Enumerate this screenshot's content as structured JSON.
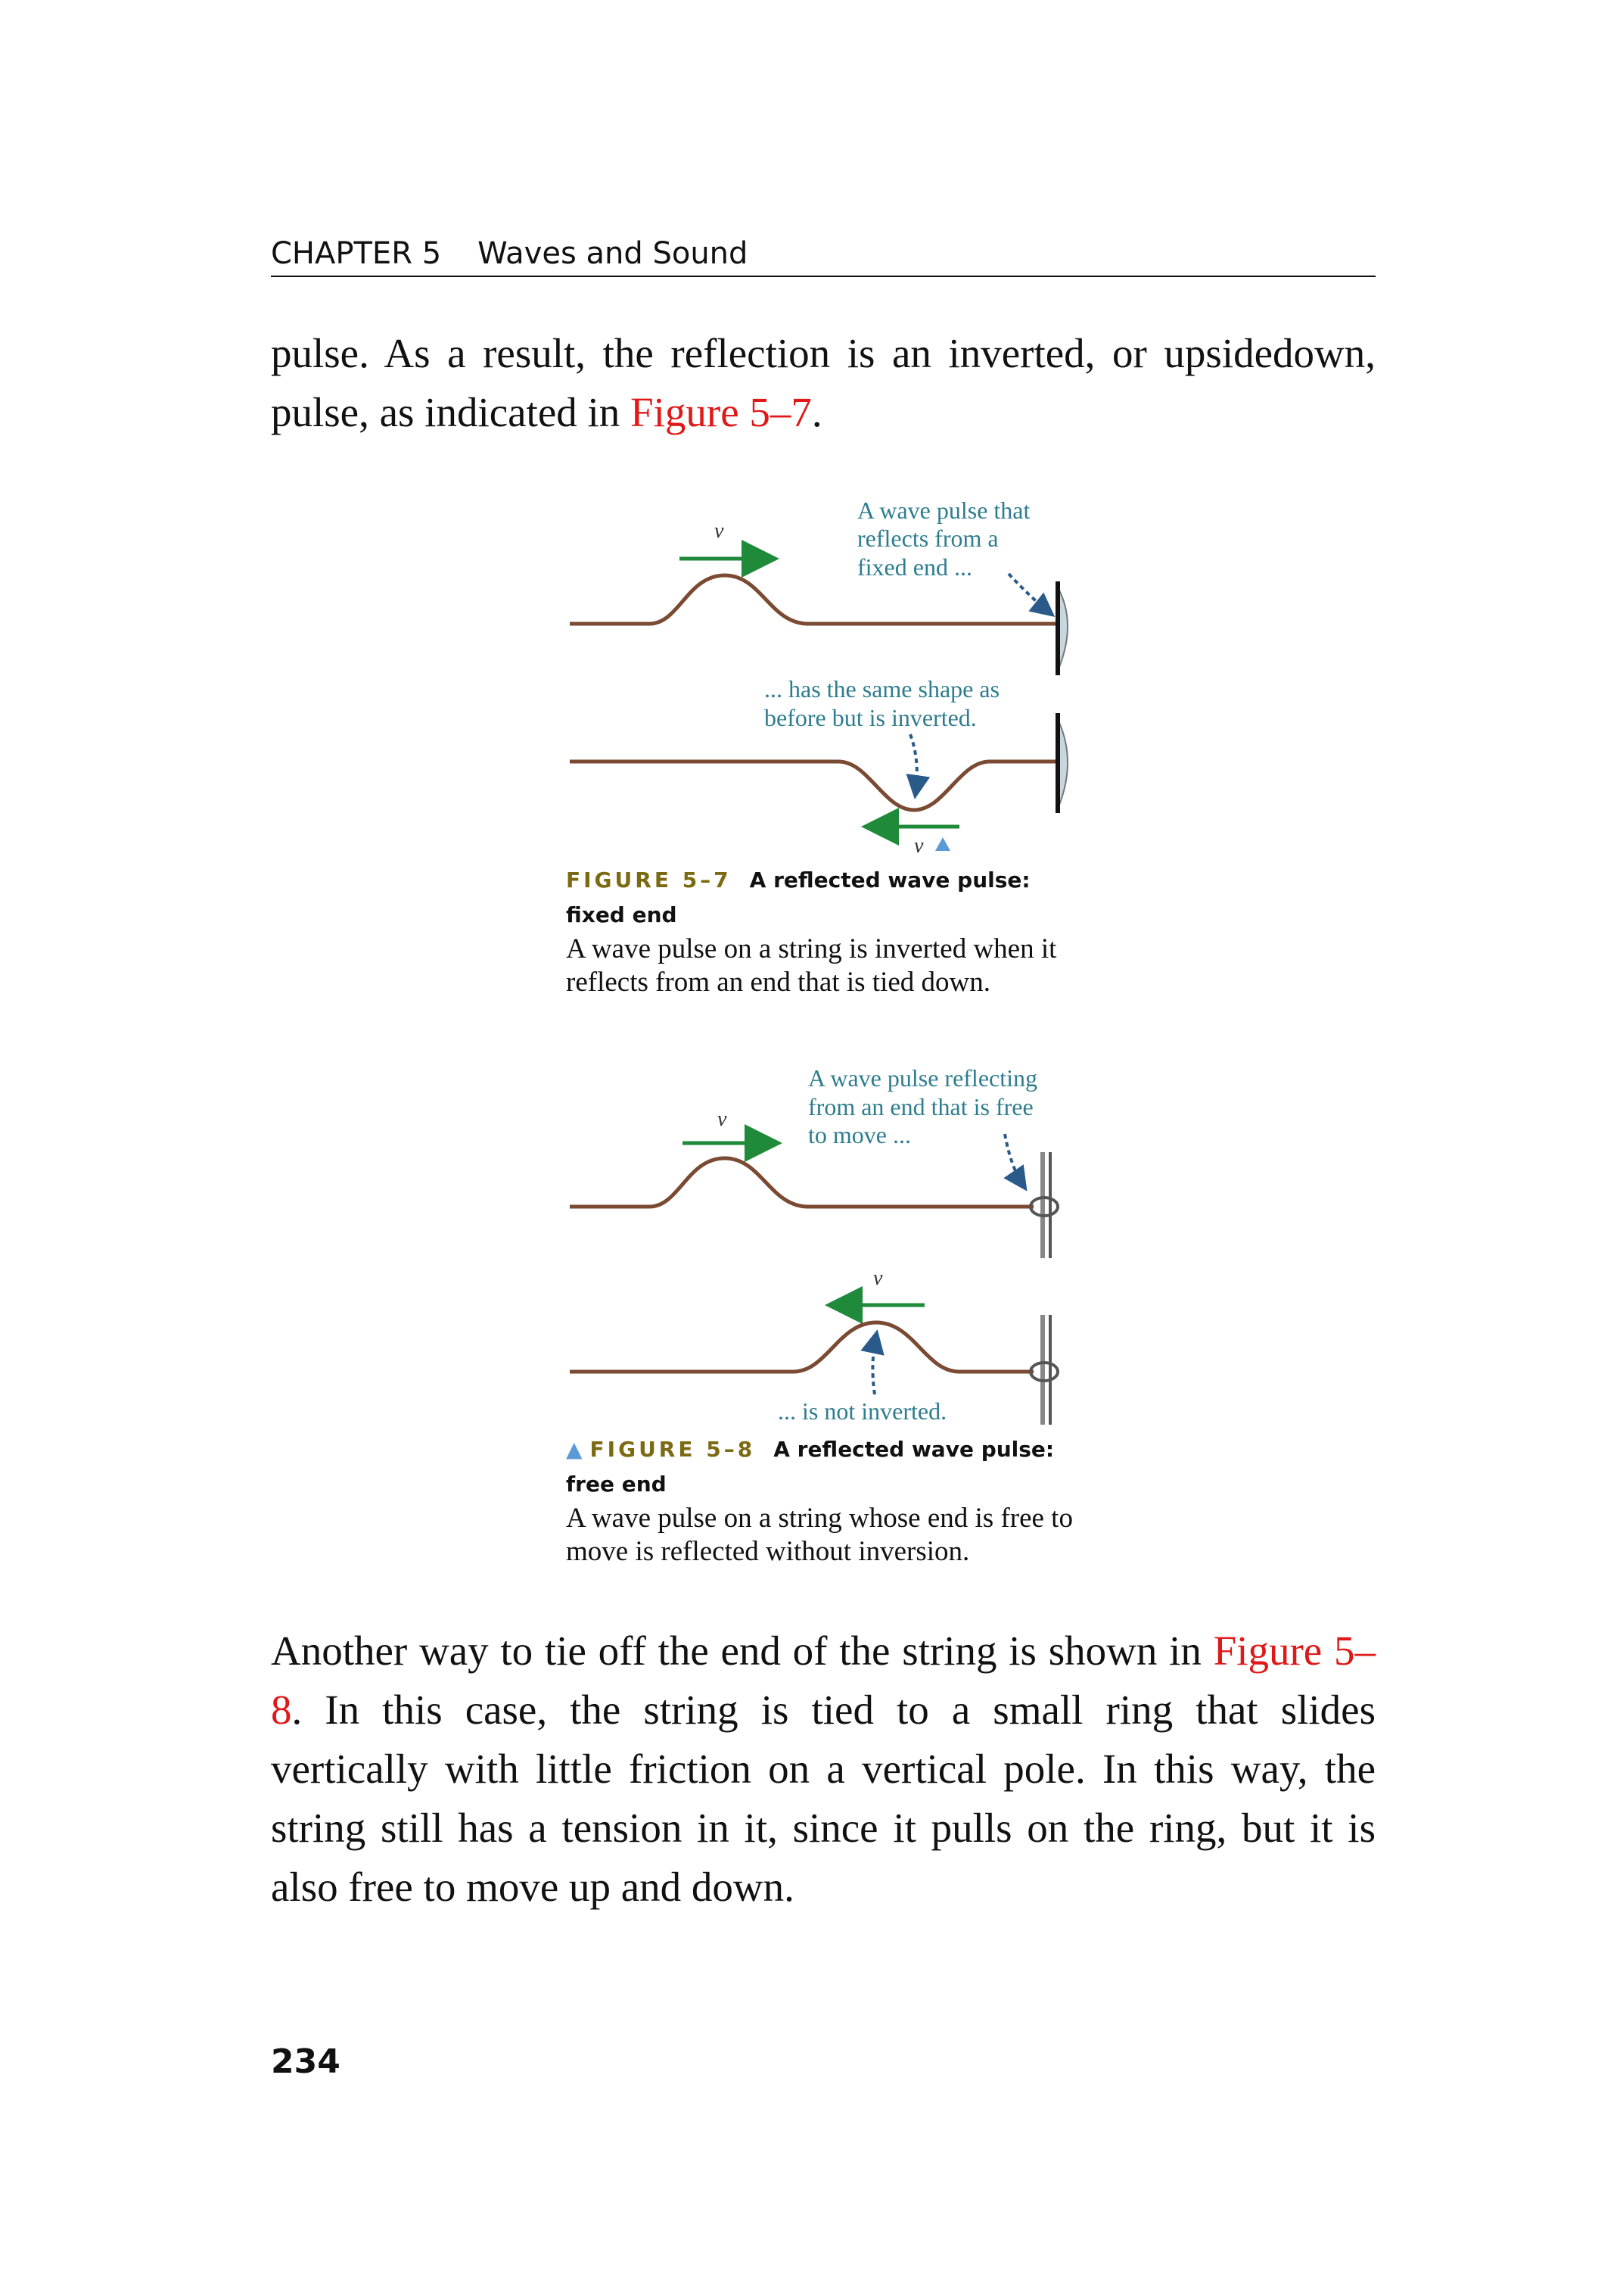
{
  "header": {
    "chapter": "CHAPTER 5",
    "title": "Waves and Sound"
  },
  "paragraph1": {
    "text": "pulse. As a result, the reflection is an inverted, or upsidedown, pulse, as indicated in ",
    "ref": "Figure 5–7",
    "end": "."
  },
  "figure7": {
    "annotation_top": [
      "A wave pulse that",
      "reflects from a",
      "fixed end ..."
    ],
    "annotation_bottom": [
      "... has the same shape as",
      "before but is inverted."
    ],
    "velocity_label": "v",
    "label": "FIGURE 5–7",
    "caption_title": "A reflected wave pulse: fixed end",
    "caption_text": "A wave pulse on a string is inverted when it reflects from an end that is tied down."
  },
  "figure8": {
    "annotation_top": [
      "A wave pulse reflecting",
      "from an end that is free",
      "to move ..."
    ],
    "annotation_bottom": "... is not inverted.",
    "velocity_label": "v",
    "label": "FIGURE 5–8",
    "caption_title": "A reflected wave pulse: free end",
    "caption_text": "A wave pulse on a string whose end is free to move is reflected without inversion."
  },
  "paragraph2": {
    "start": "Another way to tie off the end of the string is shown in ",
    "ref": "Figure 5–8",
    "text": ". In this case, the string is tied to a small ring that slides vertically with little friction on a vertical pole. In this way, the string still has a tension in it, since it pulls on the ring, but it is also free to move up and down."
  },
  "page_number": "234",
  "colors": {
    "reference": "#e01818",
    "annotation": "#2e7d8f",
    "arrow": "#1f8a3a",
    "string": "#7a4a32",
    "figure_label": "#7b6a12"
  }
}
